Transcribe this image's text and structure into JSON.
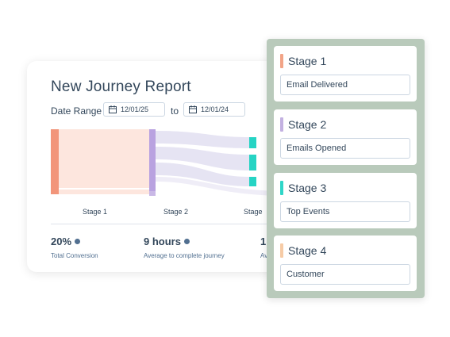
{
  "report": {
    "title": "New Journey Report",
    "date_range_label": "Date Range",
    "start_date": "12/01/25",
    "to_label": "to",
    "end_date": "12/01/24",
    "stage_labels": [
      "Stage 1",
      "Stage 2",
      "Stage"
    ],
    "metrics": [
      {
        "value": "20%",
        "caption": "Total Conversion"
      },
      {
        "value": "9 hours",
        "caption": "Average to complete journey"
      },
      {
        "value": "1",
        "caption": "Av"
      }
    ]
  },
  "stages": [
    {
      "name": "Stage 1",
      "value": "Email Delivered",
      "color": "#f2a487"
    },
    {
      "name": "Stage 2",
      "value": "Emails Opened",
      "color": "#c3b1e1"
    },
    {
      "name": "Stage 3",
      "value": "Top Events",
      "color": "#2fd6c8"
    },
    {
      "name": "Stage 4",
      "value": "Customer",
      "color": "#f6cba6"
    }
  ],
  "icons": {
    "calendar": "calendar-icon",
    "metric_dot": "info-dot-icon"
  }
}
